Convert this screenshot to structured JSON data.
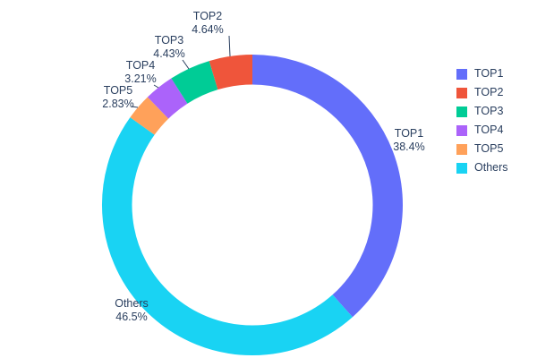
{
  "chart_data": {
    "type": "pie",
    "hole": 0.8,
    "title": "",
    "labels": [
      "TOP1",
      "TOP2",
      "TOP3",
      "TOP4",
      "TOP5",
      "Others"
    ],
    "values": [
      38.4,
      4.64,
      4.43,
      3.21,
      2.83,
      46.5
    ],
    "percent_labels": [
      "38.4%",
      "4.64%",
      "4.43%",
      "3.21%",
      "2.83%",
      "46.5%"
    ],
    "colors": [
      "#636efa",
      "#ef553b",
      "#00cc96",
      "#ab63fa",
      "#ffa15a",
      "#19d3f3"
    ],
    "clockwise_order_from_top": [
      "TOP1",
      "Others",
      "TOP5",
      "TOP4",
      "TOP3",
      "TOP2"
    ],
    "legend": {
      "position": "right",
      "entries": [
        "TOP1",
        "TOP2",
        "TOP3",
        "TOP4",
        "TOP5",
        "Others"
      ]
    },
    "text_color": "#2a3f5f",
    "background": "#ffffff"
  }
}
